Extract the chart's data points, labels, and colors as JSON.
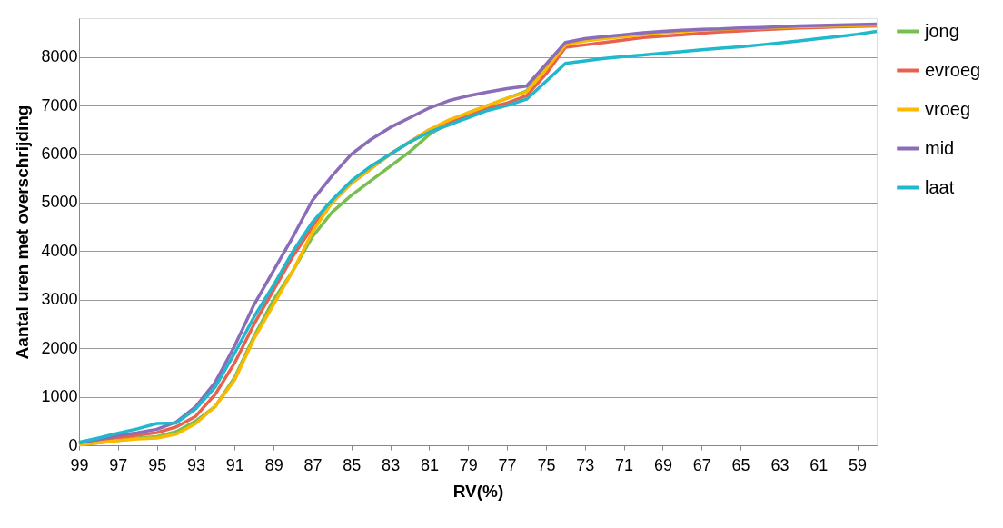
{
  "chart_data": {
    "type": "line",
    "xlabel": "RV(%)",
    "ylabel": "Aantal uren met overschrijding",
    "categories": [
      "99",
      null,
      "97",
      null,
      "95",
      null,
      "93",
      null,
      "91",
      null,
      "89",
      null,
      "87",
      null,
      "85",
      null,
      "83",
      null,
      "81",
      null,
      "79",
      null,
      "77",
      null,
      "75",
      null,
      "73",
      null,
      "71",
      null,
      "69",
      null,
      "67",
      null,
      "65",
      null,
      "63",
      null,
      "61",
      null,
      "59",
      null
    ],
    "series": [
      {
        "name": "jong",
        "color": "#77c050",
        "values": [
          10,
          50,
          100,
          150,
          180,
          280,
          500,
          800,
          1400,
          2250,
          3000,
          3600,
          4300,
          4800,
          5150,
          5450,
          5750,
          6050,
          6400,
          6650,
          6850,
          7000,
          7150,
          7300,
          7800,
          8300,
          null,
          null,
          null,
          null,
          null,
          null,
          null,
          null,
          null,
          null,
          null,
          null,
          null,
          null,
          null,
          null
        ]
      },
      {
        "name": "evroeg",
        "color": "#e8604e",
        "values": [
          20,
          80,
          150,
          210,
          260,
          380,
          600,
          1050,
          1700,
          2500,
          3200,
          3900,
          4500,
          5000,
          5400,
          5700,
          6000,
          6250,
          6500,
          6650,
          6800,
          6950,
          7050,
          7200,
          7650,
          8200,
          8250,
          8300,
          8350,
          8400,
          8430,
          8460,
          8490,
          8520,
          8540,
          8560,
          8580,
          8600,
          8610,
          8620,
          8630,
          8640
        ]
      },
      {
        "name": "vroeg",
        "color": "#fbba00",
        "values": [
          10,
          50,
          100,
          130,
          150,
          230,
          450,
          800,
          1350,
          2200,
          2900,
          3600,
          4400,
          5000,
          5400,
          5700,
          6000,
          6250,
          6500,
          6700,
          6850,
          7000,
          7150,
          7280,
          7750,
          8250,
          8330,
          8380,
          8420,
          8460,
          8500,
          8530,
          8550,
          8570,
          8590,
          8600,
          8610,
          8620,
          8630,
          8640,
          8650,
          8660
        ]
      },
      {
        "name": "mid",
        "color": "#8b6cb8",
        "values": [
          50,
          120,
          200,
          260,
          330,
          480,
          800,
          1300,
          2050,
          2900,
          3600,
          4300,
          5050,
          5550,
          6000,
          6300,
          6550,
          6750,
          6950,
          7100,
          7200,
          7280,
          7350,
          7400,
          7850,
          8300,
          8380,
          8420,
          8460,
          8500,
          8530,
          8550,
          8570,
          8580,
          8600,
          8610,
          8620,
          8640,
          8650,
          8660,
          8670,
          8680
        ]
      },
      {
        "name": "laat",
        "color": "#1fb8cc",
        "values": [
          60,
          150,
          250,
          340,
          450,
          460,
          750,
          1200,
          1900,
          2650,
          3300,
          4000,
          4600,
          5050,
          5450,
          5750,
          6000,
          6250,
          6450,
          6600,
          6750,
          6900,
          7000,
          7130,
          7500,
          7870,
          7920,
          7970,
          8010,
          8040,
          8080,
          8110,
          8150,
          8180,
          8210,
          8250,
          8290,
          8330,
          8380,
          8420,
          8470,
          8530
        ]
      }
    ],
    "ylim": [
      0,
      8800
    ],
    "yticks": [
      0,
      1000,
      2000,
      3000,
      4000,
      5000,
      6000,
      7000,
      8000
    ],
    "grid": "y",
    "legend": "right",
    "marker": "none",
    "line_style": "solid"
  }
}
